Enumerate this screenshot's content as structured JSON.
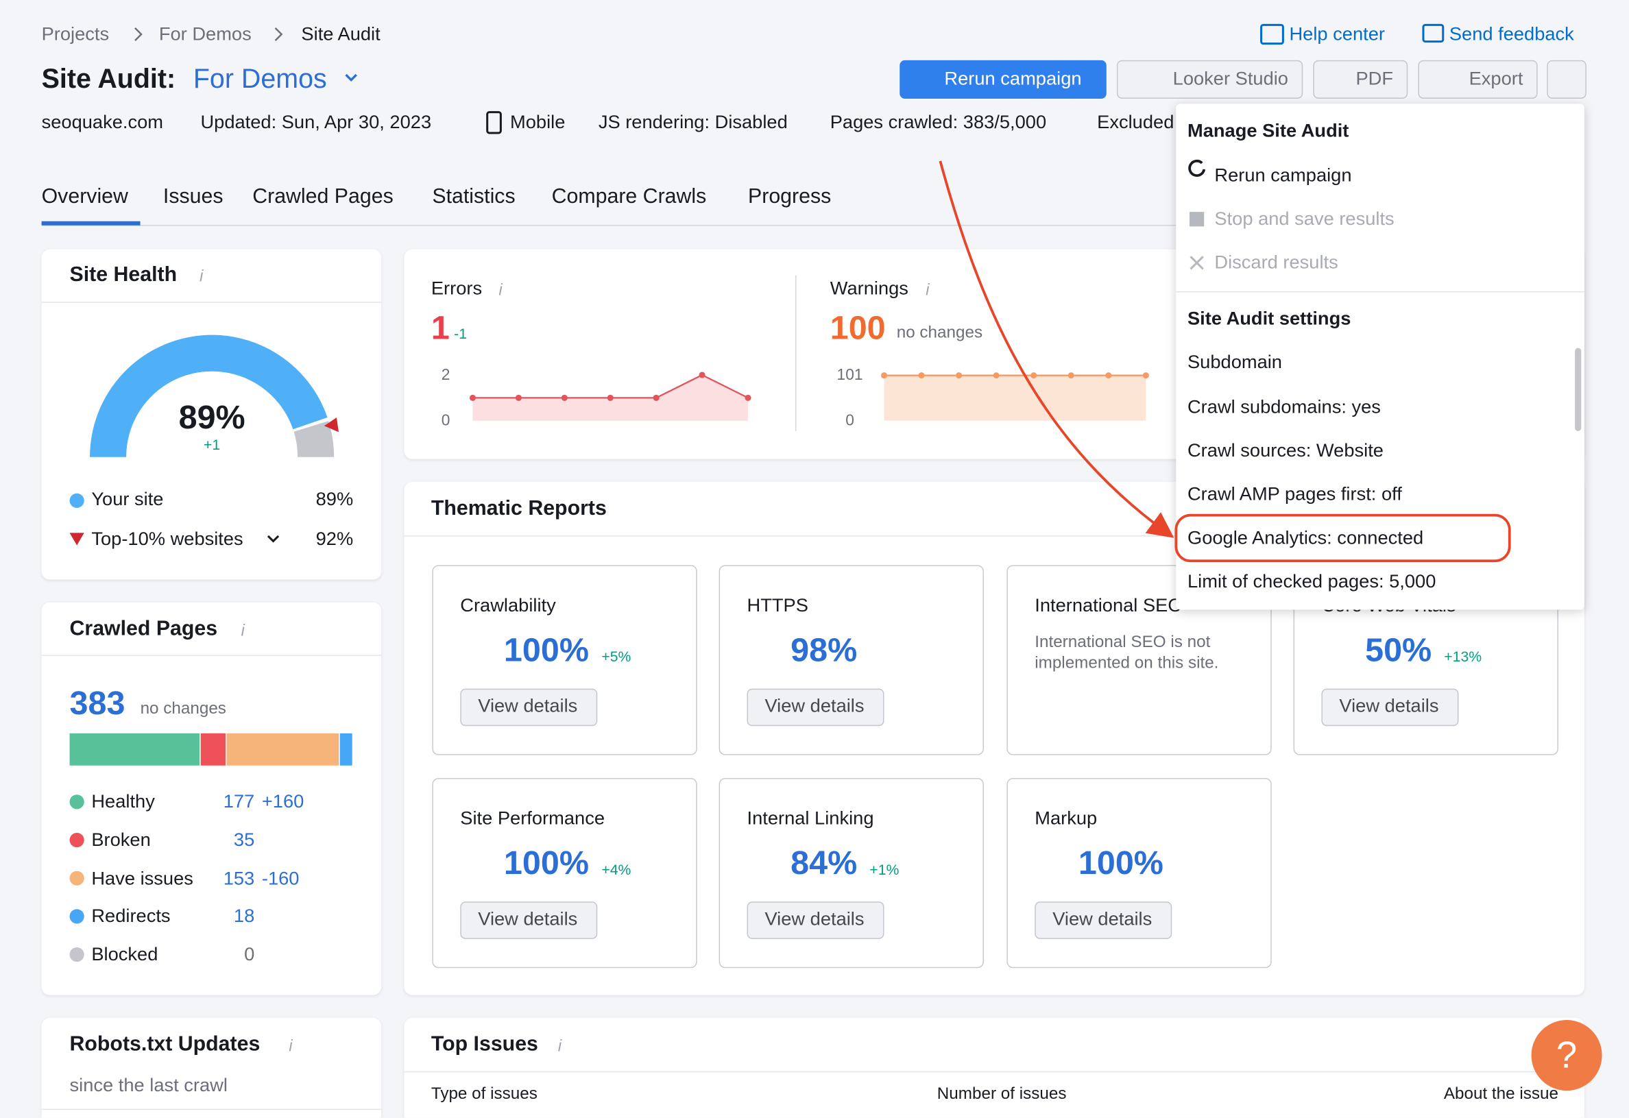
{
  "breadcrumbs": [
    "Projects",
    "For Demos",
    "Site Audit"
  ],
  "top_links": [
    "Help center",
    "Send feedback"
  ],
  "header": {
    "title": "Site Audit:",
    "project": "For Demos"
  },
  "actions": [
    "Rerun campaign",
    "Looker Studio",
    "PDF",
    "Export"
  ],
  "info": [
    "seoquake.com",
    "Updated: Sun, Apr 30, 2023",
    "Mobile",
    "JS rendering: Disabled",
    "Pages crawled: 383/5,000",
    "Excluded"
  ],
  "tabs": [
    "Overview",
    "Issues",
    "Crawled Pages",
    "Statistics",
    "Compare Crawls",
    "Progress"
  ],
  "site_health": {
    "title": "Site Health",
    "score": "89%",
    "change": "+1",
    "legend": [
      {
        "label": "Your site",
        "value": "89%"
      },
      {
        "label": "Top-10% websites",
        "value": "92%"
      }
    ]
  },
  "errors": {
    "label": "Errors",
    "value": "1",
    "change": "-1",
    "yticks": [
      0,
      2
    ],
    "values": [
      1,
      1,
      1,
      1,
      1,
      2,
      1
    ]
  },
  "warnings": {
    "label": "Warnings",
    "value": "100",
    "change": "no changes",
    "yticks": [
      0,
      101
    ],
    "values": [
      100,
      100,
      100,
      100,
      100,
      100,
      100,
      100
    ]
  },
  "crawled_pages": {
    "title": "Crawled Pages",
    "total": "383",
    "change": "no changes",
    "rows": [
      {
        "label": "Healthy",
        "value": 177,
        "change": "+160"
      },
      {
        "label": "Broken",
        "value": 35
      },
      {
        "label": "Have issues",
        "value": 153,
        "change": "-160"
      },
      {
        "label": "Redirects",
        "value": 18
      },
      {
        "label": "Blocked",
        "value": 0
      }
    ]
  },
  "robots": {
    "title": "Robots.txt Updates",
    "subtitle": "since the last crawl"
  },
  "thematic": {
    "title": "Thematic Reports",
    "button": "View details",
    "reports": [
      {
        "name": "Crawlability",
        "value": "100%",
        "change": "+5%"
      },
      {
        "name": "HTTPS",
        "value": "98%"
      },
      {
        "name": "International SEO",
        "note": "International SEO is not implemented on this site."
      },
      {
        "name": "Core Web Vitals",
        "value": "50%",
        "change": "+13%"
      },
      {
        "name": "Site Performance",
        "value": "100%",
        "change": "+4%"
      },
      {
        "name": "Internal Linking",
        "value": "84%",
        "change": "+1%"
      },
      {
        "name": "Markup",
        "value": "100%"
      }
    ]
  },
  "top_issues": {
    "title": "Top Issues",
    "columns": [
      "Type of issues",
      "Number of issues",
      "About the issue"
    ]
  },
  "menu": {
    "sections": [
      {
        "title": "Manage Site Audit",
        "items": [
          "Rerun campaign",
          "Stop and save results",
          "Discard results"
        ]
      },
      {
        "title": "Site Audit settings",
        "items": [
          "Subdomain",
          "Crawl subdomains: yes",
          "Crawl sources: Website",
          "Crawl AMP pages first: off",
          "Google Analytics: connected",
          "Limit of checked pages: 5,000"
        ]
      }
    ]
  },
  "help_button": "?"
}
